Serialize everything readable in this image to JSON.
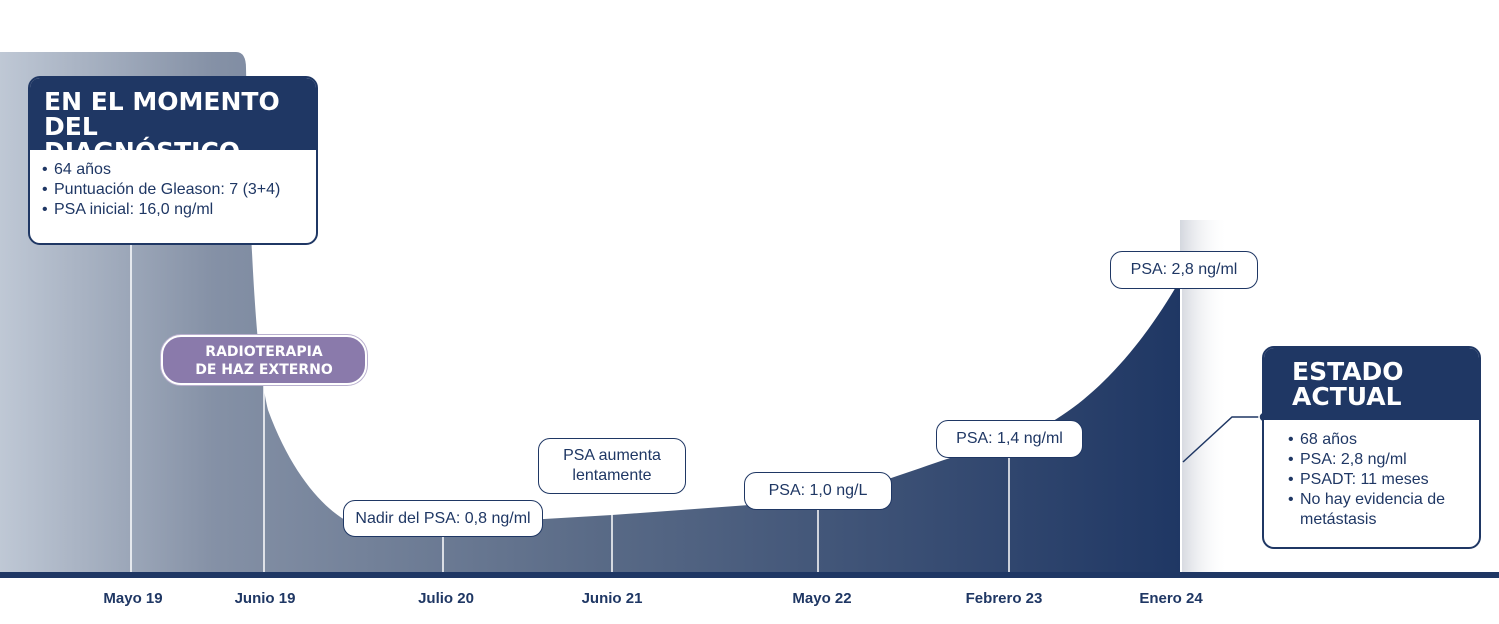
{
  "diagnosis": {
    "title_line1": "En el momento",
    "title_line2": "del diagnóstico",
    "items": [
      "64 años",
      "Puntuación de Gleason: 7 (3+4)",
      "PSA inicial: 16,0 ng/ml"
    ]
  },
  "treatment": {
    "line1": "Radioterapia",
    "line2": "de haz externo"
  },
  "events": [
    {
      "text": "Nadir del PSA: 0,8 ng/ml"
    },
    {
      "line1": "PSA aumenta",
      "line2": "lentamente"
    },
    {
      "text": "PSA: 1,0 ng/L"
    },
    {
      "text": "PSA: 1,4 ng/ml"
    },
    {
      "text": "PSA: 2,8 ng/ml"
    }
  ],
  "current": {
    "title_line1": "Estado",
    "title_line2": "actual",
    "items": [
      "68 años",
      "PSA: 2,8 ng/ml",
      "PSADT: 11 meses",
      "No hay evidencia de metástasis"
    ]
  },
  "timeline": {
    "dates": [
      "Mayo 19",
      "Junio 19",
      "Julio 20",
      "Junio 21",
      "Mayo 22",
      "Febrero 23",
      "Enero 24"
    ]
  },
  "colors": {
    "navy": "#1f3764",
    "purple": "#8a7aab",
    "light_slate": "#b9c3d1"
  }
}
